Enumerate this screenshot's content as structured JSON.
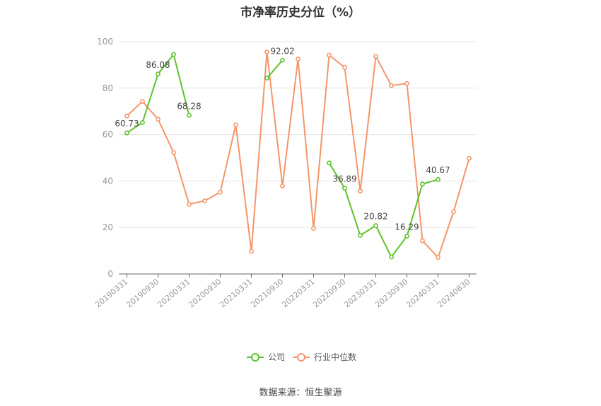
{
  "chart_data": {
    "type": "line",
    "title": "市净率历史分位（%）",
    "source": "数据来源：恒生聚源",
    "xlabel": "",
    "ylabel": "",
    "ylim": [
      0,
      100
    ],
    "yticks": [
      0,
      20,
      40,
      60,
      80,
      100
    ],
    "grid": true,
    "legend_position": "bottom-center",
    "x_tick_labels": [
      "20190331",
      "20190930",
      "20200331",
      "20200930",
      "20210331",
      "20210930",
      "20220331",
      "20220930",
      "20230331",
      "20230930",
      "20240331",
      "20240830"
    ],
    "x": [
      "20190331",
      "20190630",
      "20190930",
      "20191231",
      "20200331",
      "20200630",
      "20200930",
      "20201231",
      "20210331",
      "20210630",
      "20210930",
      "20211231",
      "20220331",
      "20220630",
      "20220930",
      "20221231",
      "20230331",
      "20230630",
      "20230930",
      "20231231",
      "20240331",
      "20240630",
      "20240830"
    ],
    "series": [
      {
        "name": "公司",
        "color": "#5cc32b",
        "values": [
          60.73,
          65.2,
          86.08,
          94.5,
          68.28,
          null,
          null,
          null,
          null,
          84.3,
          92.02,
          null,
          null,
          47.8,
          36.89,
          16.6,
          20.82,
          7.3,
          16.29,
          38.7,
          40.67,
          null,
          null
        ],
        "labels": {
          "0": "60.73",
          "2": "86.08",
          "4": "68.28",
          "10": "92.02",
          "14": "36.89",
          "16": "20.82",
          "18": "16.29",
          "20": "40.67"
        }
      },
      {
        "name": "行业中位数",
        "color": "#f5956a",
        "values": [
          68.0,
          74.3,
          66.6,
          52.3,
          30.0,
          31.5,
          35.2,
          64.2,
          9.7,
          95.5,
          37.9,
          92.5,
          19.6,
          94.2,
          88.9,
          35.7,
          93.7,
          81.1,
          82.0,
          14.3,
          7.1,
          26.8,
          49.8
        ]
      }
    ]
  }
}
